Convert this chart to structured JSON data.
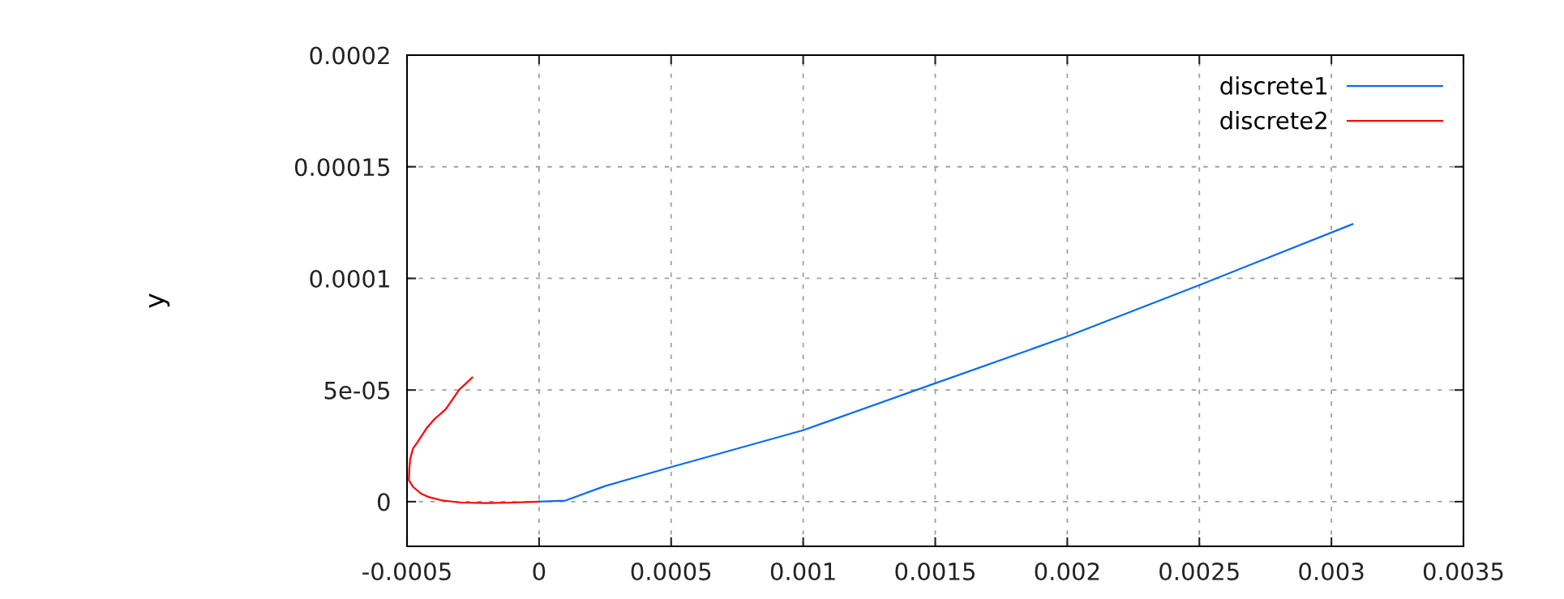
{
  "chart_data": {
    "type": "line",
    "ylabel": "y",
    "xlim": [
      -0.0005,
      0.0035
    ],
    "ylim": [
      -2e-05,
      0.0002
    ],
    "xticks": [
      -0.0005,
      0,
      0.0005,
      0.001,
      0.0015,
      0.002,
      0.0025,
      0.003,
      0.0035
    ],
    "yticks": [
      0,
      {
        "value": 5e-05,
        "label": "5e-05"
      },
      0.0001,
      0.00015,
      0.0002
    ],
    "grid": true,
    "legend": "top right",
    "line_style": "solid",
    "marker": "none",
    "series": [
      {
        "name": "discrete1",
        "color": "#0a6cf0",
        "x": [
          0,
          0.0001,
          0.00025,
          0.0005,
          0.001,
          0.0015,
          0.002,
          0.0025,
          0.00308
        ],
        "values": [
          0,
          5e-07,
          7e-06,
          1.55e-05,
          3.2e-05,
          5.3e-05,
          7.4e-05,
          9.7e-05,
          0.0001243
        ]
      },
      {
        "name": "discrete2",
        "color": "#ff0000",
        "x": [
          0,
          -9.7e-05,
          -0.0002,
          -0.000297,
          -0.000369,
          -0.000416,
          -0.000447,
          -0.000477,
          -0.000493,
          -0.000491,
          -0.000488,
          -0.000477,
          -0.000462,
          -0.000426,
          -0.000395,
          -0.000354,
          -0.000302,
          -0.000253
        ],
        "values": [
          0,
          -4e-07,
          -6e-07,
          -4e-07,
          6e-07,
          2e-06,
          3.6e-06,
          6.6e-06,
          9.6e-06,
          1.5e-05,
          1.91e-05,
          2.39e-05,
          2.63e-05,
          3.29e-05,
          3.71e-05,
          4.13e-05,
          5.02e-05,
          5.56e-05
        ]
      }
    ]
  }
}
